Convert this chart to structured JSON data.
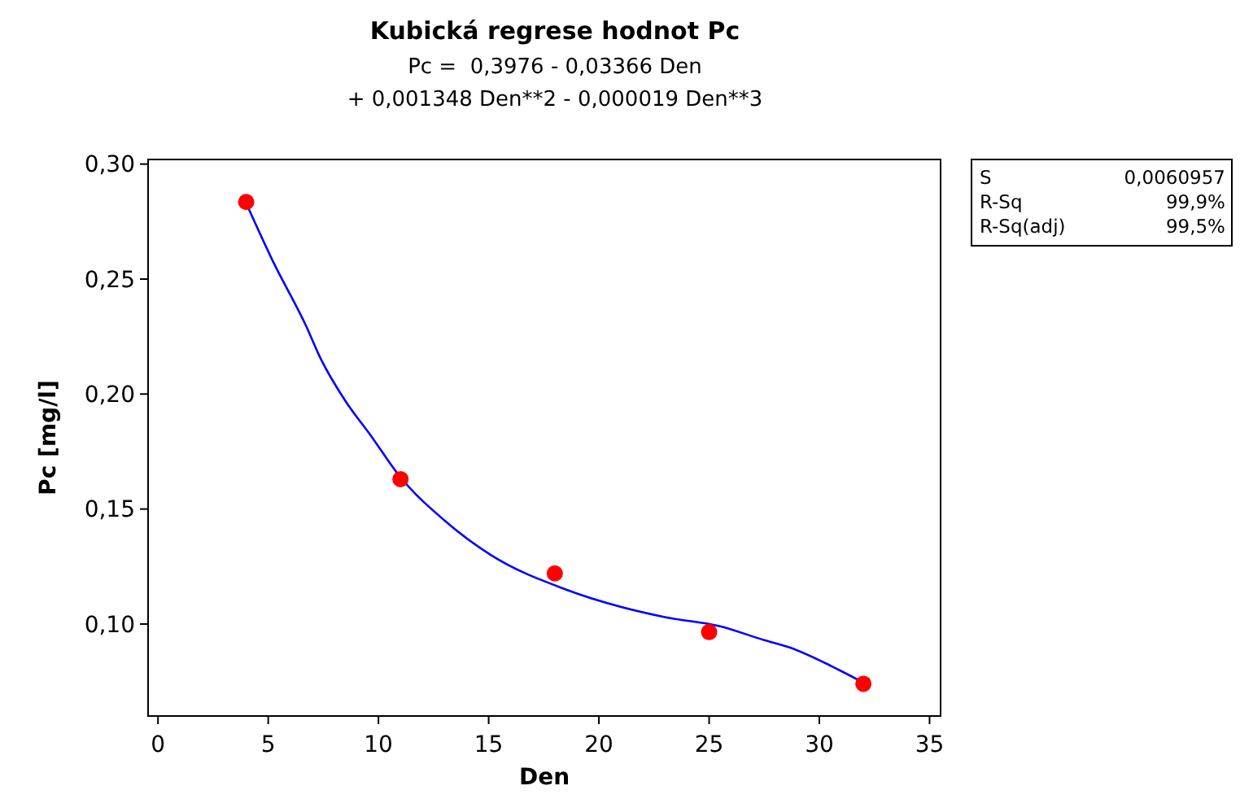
{
  "chart_data": {
    "type": "scatter",
    "title": "Kubická regrese hodnot Pc",
    "subtitle": "Pc =  0,3976 - 0,03366 Den\n+ 0,001348 Den**2 - 0,000019 Den**3",
    "xlabel": "Den",
    "ylabel": "Pc [mg/l]",
    "xlim": [
      -0.45,
      35.5
    ],
    "xticks": [
      0,
      5,
      10,
      15,
      20,
      25,
      30,
      35
    ],
    "ylim": [
      0.06,
      0.302
    ],
    "yticks": [
      {
        "value": 0.1,
        "label": "0,10"
      },
      {
        "value": 0.15,
        "label": "0,15"
      },
      {
        "value": 0.2,
        "label": "0,20"
      },
      {
        "value": 0.25,
        "label": "0,25"
      },
      {
        "value": 0.3,
        "label": "0,30"
      }
    ],
    "grid": false,
    "series": [
      {
        "color": "#ff0000",
        "marker": "circle",
        "x": [
          4,
          11,
          18,
          25,
          32
        ],
        "values": [
          0.2835,
          0.163,
          0.122,
          0.0965,
          0.074
        ]
      },
      {
        "type": "line",
        "color": "#0000ff",
        "marker": "none",
        "line_style": "solid",
        "x": [
          4,
          5.2,
          6.7,
          7.4,
          8.5,
          9.65,
          10.9,
          13,
          15.1,
          18.5,
          23,
          25.5,
          27.5,
          28.6,
          30.9,
          32
        ],
        "values": [
          0.283,
          0.258,
          0.23,
          0.215,
          0.197,
          0.182,
          0.165,
          0.145,
          0.13,
          0.115,
          0.103,
          0.099,
          0.093,
          0.09,
          0.08,
          0.0745
        ]
      }
    ],
    "annotations": [
      "S\t0,0060957",
      "R-Sq\t99,9%",
      "R-Sq(adj)\t99,5%"
    ]
  }
}
